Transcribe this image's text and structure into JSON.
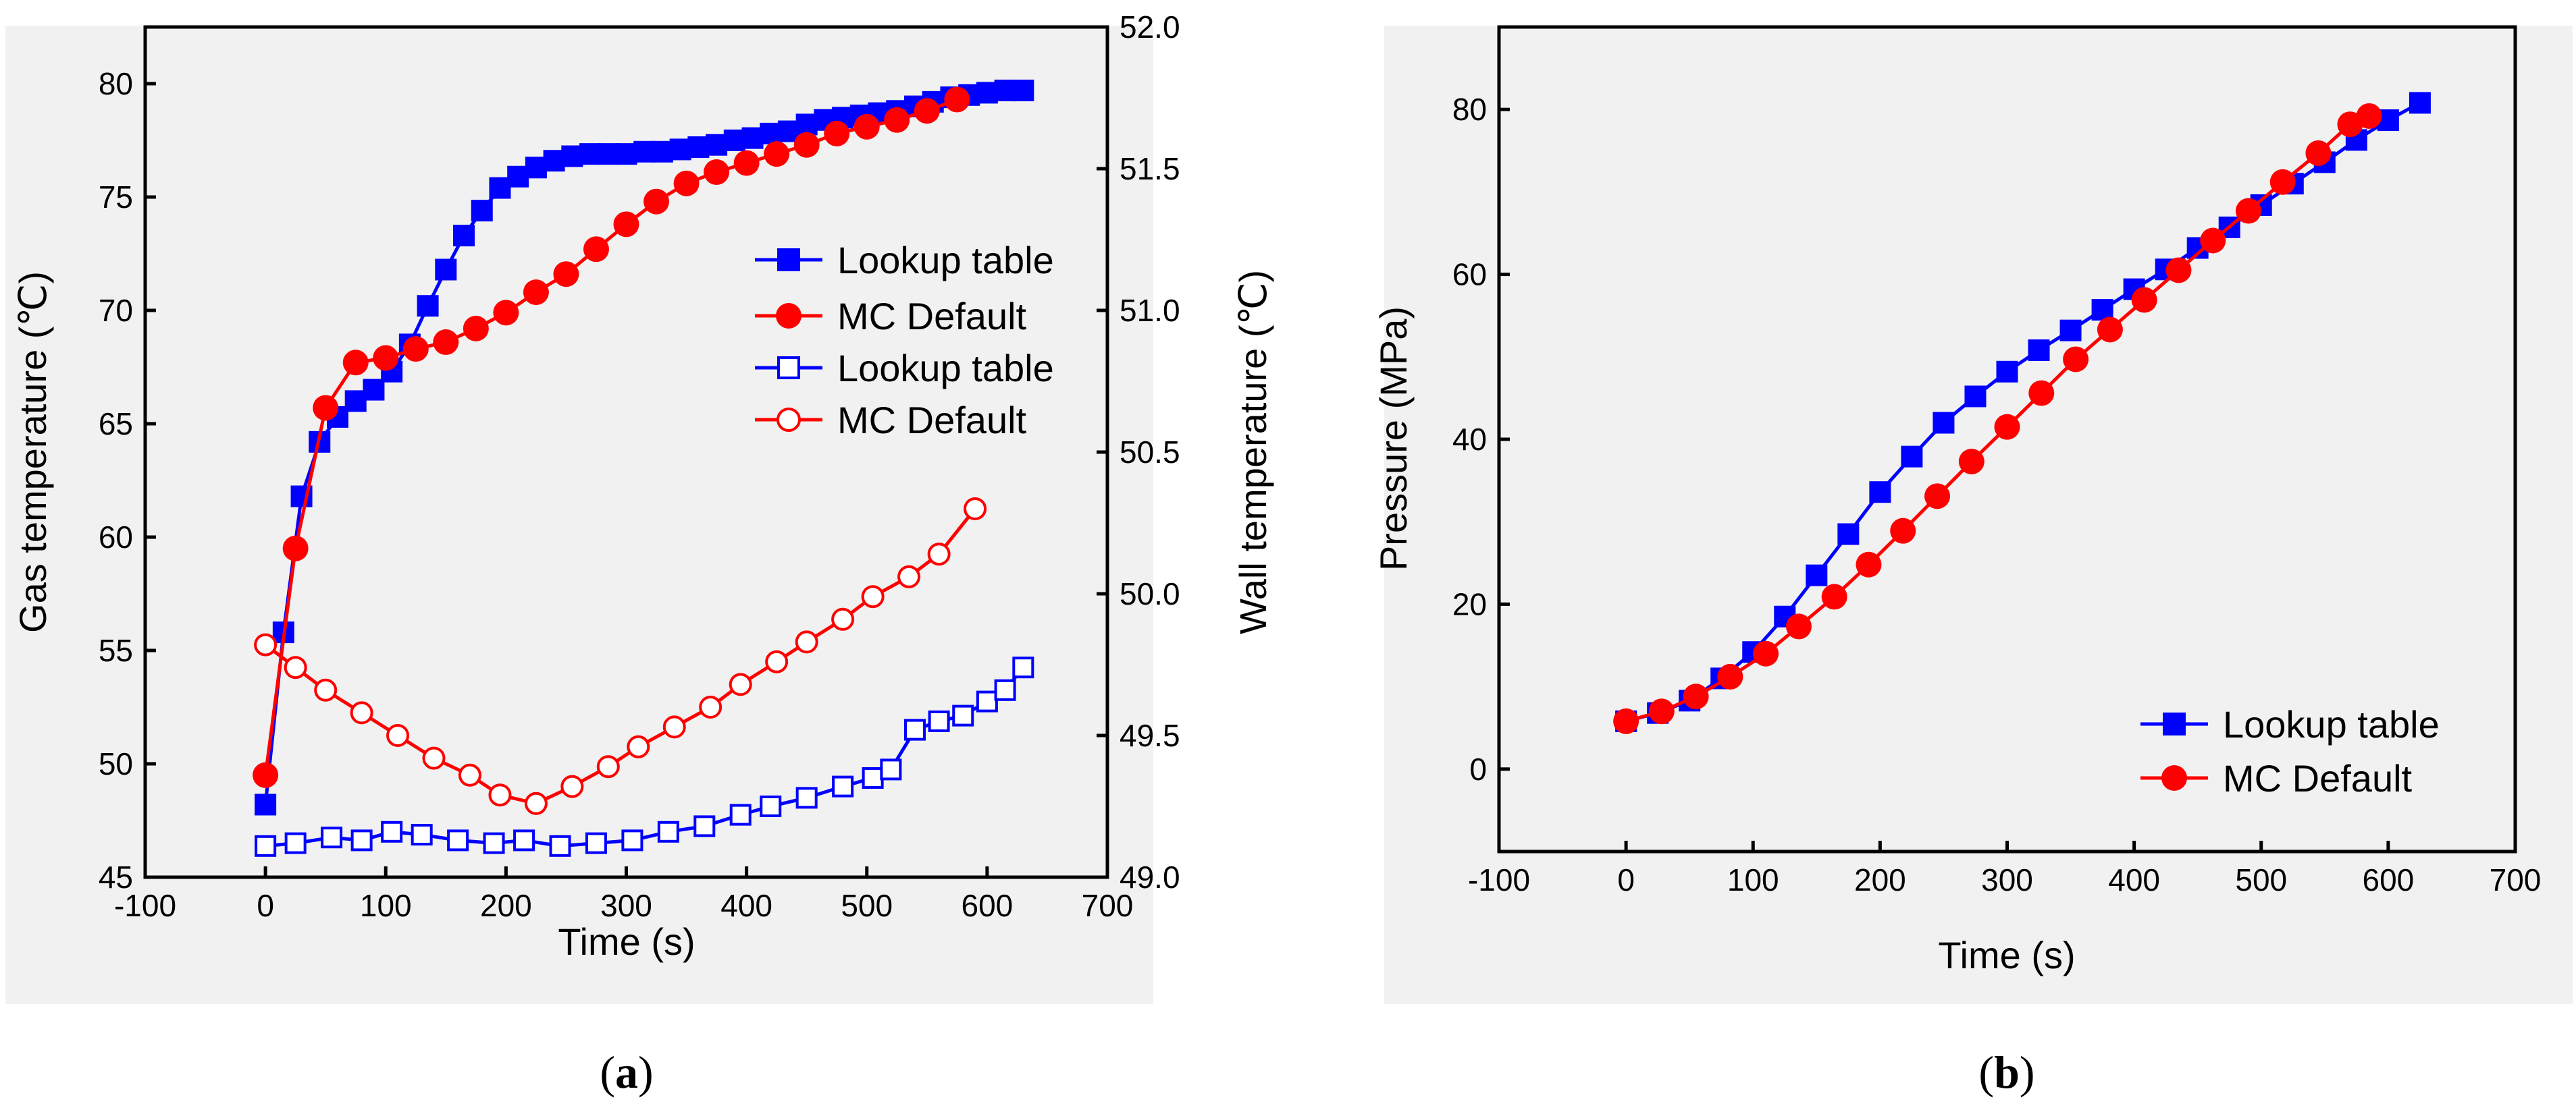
{
  "colors": {
    "lookup": "#0000ff",
    "mc": "#ff0000",
    "axis": "#000000"
  },
  "panel_captions": [
    {
      "open": "(",
      "letter": "a",
      "close": ")"
    },
    {
      "open": "(",
      "letter": "b",
      "close": ")"
    }
  ],
  "chart_data": [
    {
      "type": "line",
      "panel": "a",
      "xlabel": "Time (s)",
      "ylabel": "Gas temperature (℃)",
      "y2label": "Wall temperature (℃)",
      "xlim": [
        -100,
        700
      ],
      "ylim": [
        45,
        82.5
      ],
      "y2lim": [
        49.0,
        52.0
      ],
      "x_ticks": [
        -100,
        0,
        100,
        200,
        300,
        400,
        500,
        600,
        700
      ],
      "x_tick_labels": [
        "-100",
        "0",
        "100",
        "200",
        "300",
        "400",
        "500",
        "600",
        "700"
      ],
      "y_ticks": [
        45,
        50,
        55,
        60,
        65,
        70,
        75,
        80
      ],
      "y_tick_labels": [
        "45",
        "50",
        "55",
        "60",
        "65",
        "70",
        "75",
        "80"
      ],
      "y2_ticks": [
        49.0,
        49.5,
        50.0,
        50.5,
        51.0,
        51.5,
        52.0
      ],
      "y2_tick_labels": [
        "49.0",
        "49.5",
        "50.0",
        "50.5",
        "51.0",
        "51.5",
        "52.0"
      ],
      "legend_position": "center-right",
      "series": [
        {
          "name": "Lookup table",
          "axis": "left",
          "color": "#0000ff",
          "marker": "square",
          "filled": true,
          "x": [
            0,
            15,
            30,
            45,
            60,
            75,
            90,
            105,
            120,
            135,
            150,
            165,
            180,
            195,
            210,
            225,
            240,
            255,
            270,
            285,
            300,
            315,
            330,
            345,
            360,
            375,
            390,
            405,
            420,
            435,
            450,
            465,
            480,
            495,
            510,
            525,
            540,
            555,
            570,
            585,
            600,
            615,
            630
          ],
          "y": [
            48.2,
            55.8,
            61.8,
            64.2,
            65.3,
            66.0,
            66.5,
            67.3,
            68.5,
            70.2,
            71.8,
            73.3,
            74.4,
            75.4,
            75.9,
            76.3,
            76.6,
            76.8,
            76.9,
            76.9,
            76.9,
            77.0,
            77.0,
            77.1,
            77.2,
            77.3,
            77.5,
            77.6,
            77.8,
            77.9,
            78.2,
            78.4,
            78.5,
            78.6,
            78.7,
            78.8,
            79.0,
            79.2,
            79.4,
            79.5,
            79.6,
            79.7,
            79.7
          ]
        },
        {
          "name": "MC Default",
          "axis": "left",
          "color": "#ff0000",
          "marker": "circle",
          "filled": true,
          "x": [
            0,
            25,
            50,
            75,
            100,
            125,
            150,
            175,
            200,
            225,
            250,
            275,
            300,
            325,
            350,
            375,
            400,
            425,
            450,
            475,
            500,
            525,
            550,
            575
          ],
          "y": [
            49.5,
            59.5,
            65.7,
            67.7,
            67.9,
            68.3,
            68.6,
            69.2,
            69.9,
            70.8,
            71.6,
            72.7,
            73.8,
            74.8,
            75.6,
            76.1,
            76.5,
            76.9,
            77.3,
            77.8,
            78.1,
            78.4,
            78.8,
            79.3
          ]
        },
        {
          "name": "Lookup table",
          "axis": "right",
          "color": "#0000ff",
          "marker": "square",
          "filled": false,
          "x": [
            0,
            25,
            55,
            80,
            105,
            130,
            160,
            190,
            215,
            245,
            275,
            305,
            335,
            365,
            395,
            420,
            450,
            480,
            505,
            520,
            540,
            560,
            580,
            600,
            615,
            630
          ],
          "y": [
            49.11,
            49.12,
            49.14,
            49.13,
            49.16,
            49.15,
            49.13,
            49.12,
            49.13,
            49.11,
            49.12,
            49.13,
            49.16,
            49.18,
            49.22,
            49.25,
            49.28,
            49.32,
            49.35,
            49.38,
            49.52,
            49.55,
            49.57,
            49.62,
            49.66,
            49.74
          ]
        },
        {
          "name": "MC Default",
          "axis": "right",
          "color": "#ff0000",
          "marker": "circle",
          "filled": false,
          "x": [
            0,
            25,
            50,
            80,
            110,
            140,
            170,
            195,
            225,
            255,
            285,
            310,
            340,
            370,
            395,
            425,
            450,
            480,
            505,
            535,
            560,
            590
          ],
          "y": [
            49.82,
            49.74,
            49.66,
            49.58,
            49.5,
            49.42,
            49.36,
            49.29,
            49.26,
            49.32,
            49.39,
            49.46,
            49.53,
            49.6,
            49.68,
            49.76,
            49.83,
            49.91,
            49.99,
            50.06,
            50.14,
            50.3
          ]
        }
      ]
    },
    {
      "type": "line",
      "panel": "b",
      "xlabel": "Time (s)",
      "ylabel": "Pressure (MPa)",
      "xlim": [
        -100,
        700
      ],
      "ylim": [
        -10,
        90
      ],
      "x_ticks": [
        -100,
        0,
        100,
        200,
        300,
        400,
        500,
        600,
        700
      ],
      "x_tick_labels": [
        "-100",
        "0",
        "100",
        "200",
        "300",
        "400",
        "500",
        "600",
        "700"
      ],
      "y_ticks": [
        0,
        20,
        40,
        60,
        80
      ],
      "y_tick_labels": [
        "0",
        "20",
        "40",
        "60",
        "80"
      ],
      "legend_position": "lower-right",
      "series": [
        {
          "name": "Lookup table",
          "color": "#0000ff",
          "marker": "square",
          "filled": true,
          "x": [
            0,
            25,
            50,
            75,
            100,
            125,
            150,
            175,
            200,
            225,
            250,
            275,
            300,
            325,
            350,
            375,
            400,
            425,
            450,
            475,
            500,
            525,
            550,
            575,
            600,
            625
          ],
          "y": [
            5.8,
            6.8,
            8.3,
            11.0,
            14.2,
            18.5,
            23.5,
            28.5,
            33.6,
            37.9,
            42.0,
            45.2,
            48.2,
            50.8,
            53.2,
            55.7,
            58.2,
            60.6,
            63.2,
            65.7,
            68.4,
            71.0,
            73.6,
            76.3,
            78.7,
            80.8
          ]
        },
        {
          "name": "MC Default",
          "color": "#ff0000",
          "marker": "circle",
          "filled": true,
          "x": [
            0,
            28,
            55,
            82,
            110,
            136,
            164,
            191,
            218,
            245,
            272,
            300,
            327,
            354,
            381,
            408,
            435,
            462,
            490,
            517,
            545,
            570,
            585
          ],
          "y": [
            5.8,
            7.0,
            8.8,
            11.2,
            14.0,
            17.3,
            20.9,
            24.8,
            28.9,
            33.1,
            37.3,
            41.5,
            45.6,
            49.7,
            53.3,
            56.9,
            60.5,
            64.1,
            67.7,
            71.2,
            74.7,
            78.2,
            79.2
          ]
        }
      ]
    }
  ]
}
